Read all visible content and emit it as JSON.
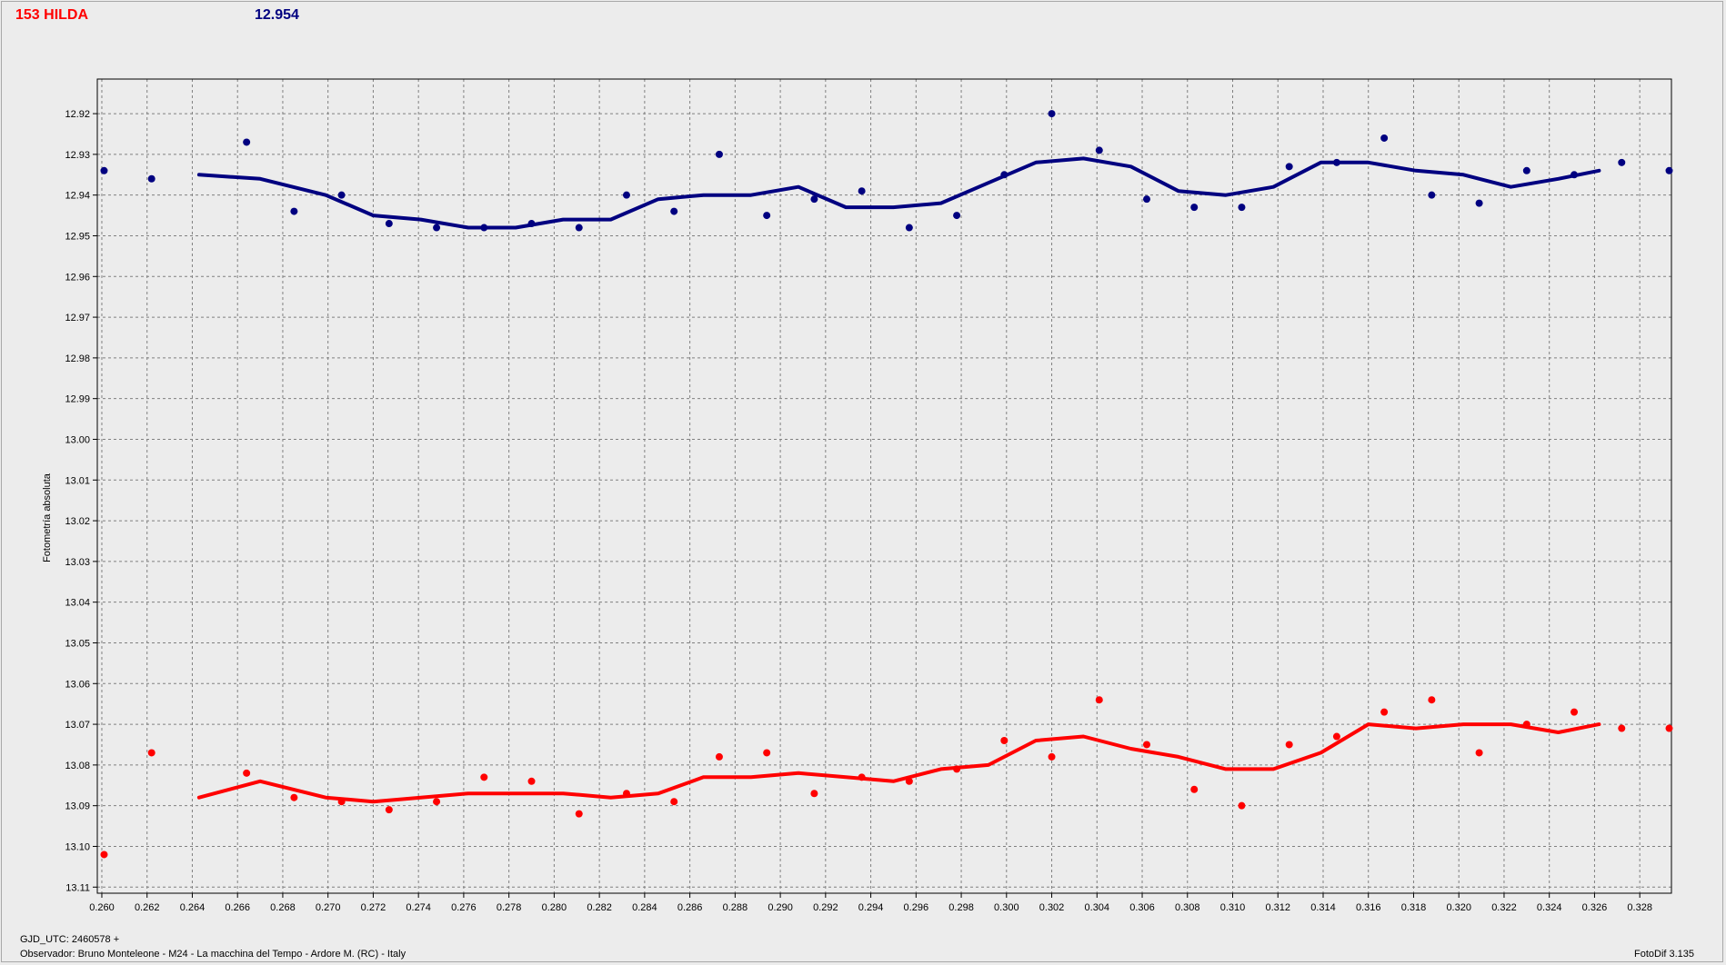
{
  "header": {
    "object_name": "153 HILDA",
    "magnitude": "12.954"
  },
  "footer": {
    "gjd": "GJD_UTC: 2460578 +",
    "observer": "Observador: Bruno Monteleone - M24 - La macchina del Tempo - Ardore M. (RC) - Italy",
    "software": "FotoDif 3.135"
  },
  "colors": {
    "background": "#ececec",
    "plot_background": "#ececec",
    "series_blue": "#000080",
    "series_red": "#ff0000",
    "grid": "#808080",
    "header_name": "#ff0000",
    "header_mag": "#000080"
  },
  "chart_data": {
    "type": "scatter",
    "title": "",
    "xlabel": "",
    "ylabel": "Fotometría absoluta",
    "xlim": [
      0.2598,
      0.3294
    ],
    "ylim": [
      13.1115,
      12.9115
    ],
    "y_inverted": true,
    "grid": true,
    "x_ticks": [
      "0.260",
      "0.262",
      "0.264",
      "0.266",
      "0.268",
      "0.270",
      "0.272",
      "0.274",
      "0.276",
      "0.278",
      "0.280",
      "0.282",
      "0.284",
      "0.286",
      "0.288",
      "0.290",
      "0.292",
      "0.294",
      "0.296",
      "0.298",
      "0.300",
      "0.302",
      "0.304",
      "0.306",
      "0.308",
      "0.310",
      "0.312",
      "0.314",
      "0.316",
      "0.318",
      "0.320",
      "0.322",
      "0.324",
      "0.326",
      "0.328"
    ],
    "y_ticks": [
      "12.92",
      "12.93",
      "12.94",
      "12.95",
      "12.96",
      "12.97",
      "12.98",
      "12.99",
      "13.00",
      "13.01",
      "13.02",
      "13.03",
      "13.04",
      "13.05",
      "13.06",
      "13.07",
      "13.08",
      "13.09",
      "13.10",
      "13.11"
    ],
    "series": [
      {
        "color": "#000080",
        "points": {
          "x": [
            0.2601,
            0.2622,
            0.2664,
            0.2685,
            0.2706,
            0.2727,
            0.2748,
            0.2769,
            0.279,
            0.2811,
            0.2832,
            0.2853,
            0.2873,
            0.2894,
            0.2915,
            0.2936,
            0.2957,
            0.2978,
            0.2999,
            0.302,
            0.3041,
            0.3062,
            0.3083,
            0.3104,
            0.3125,
            0.3146,
            0.3167,
            0.3188,
            0.3209,
            0.323,
            0.3251,
            0.3272,
            0.3293
          ],
          "y": [
            12.934,
            12.936,
            12.927,
            12.944,
            12.94,
            12.947,
            12.948,
            12.948,
            12.947,
            12.948,
            12.94,
            12.944,
            12.93,
            12.945,
            12.941,
            12.939,
            12.948,
            12.945,
            12.935,
            12.92,
            12.929,
            12.941,
            12.943,
            12.943,
            12.933,
            12.932,
            12.926,
            12.94,
            12.942,
            12.934,
            12.935,
            12.932,
            12.934
          ]
        },
        "smooth": {
          "x": [
            0.2643,
            0.267,
            0.2699,
            0.272,
            0.2741,
            0.2762,
            0.2783,
            0.2804,
            0.2825,
            0.2846,
            0.2866,
            0.2887,
            0.2908,
            0.2929,
            0.295,
            0.2971,
            0.2992,
            0.3013,
            0.3034,
            0.3055,
            0.3076,
            0.3097,
            0.3118,
            0.3139,
            0.316,
            0.3181,
            0.3202,
            0.3223,
            0.3244,
            0.3262
          ],
          "y": [
            12.935,
            12.936,
            12.94,
            12.945,
            12.946,
            12.948,
            12.948,
            12.946,
            12.946,
            12.941,
            12.94,
            12.94,
            12.938,
            12.943,
            12.943,
            12.942,
            12.937,
            12.932,
            12.931,
            12.933,
            12.939,
            12.94,
            12.938,
            12.932,
            12.932,
            12.934,
            12.935,
            12.938,
            12.936,
            12.934
          ]
        }
      },
      {
        "color": "#ff0000",
        "points": {
          "x": [
            0.2601,
            0.2622,
            0.2664,
            0.2685,
            0.2706,
            0.2727,
            0.2748,
            0.2769,
            0.279,
            0.2811,
            0.2832,
            0.2853,
            0.2873,
            0.2894,
            0.2915,
            0.2936,
            0.2957,
            0.2978,
            0.2999,
            0.302,
            0.3041,
            0.3062,
            0.3083,
            0.3104,
            0.3125,
            0.3146,
            0.3167,
            0.3188,
            0.3209,
            0.323,
            0.3251,
            0.3272,
            0.3293
          ],
          "y": [
            13.102,
            13.077,
            13.082,
            13.088,
            13.089,
            13.091,
            13.089,
            13.083,
            13.084,
            13.092,
            13.087,
            13.089,
            13.078,
            13.077,
            13.087,
            13.083,
            13.084,
            13.081,
            13.074,
            13.078,
            13.064,
            13.075,
            13.086,
            13.09,
            13.075,
            13.073,
            13.067,
            13.064,
            13.077,
            13.07,
            13.067,
            13.071,
            13.071
          ]
        },
        "smooth": {
          "x": [
            0.2643,
            0.267,
            0.2699,
            0.272,
            0.2741,
            0.2762,
            0.2783,
            0.2804,
            0.2825,
            0.2846,
            0.2866,
            0.2887,
            0.2908,
            0.2929,
            0.295,
            0.2971,
            0.2992,
            0.3013,
            0.3034,
            0.3055,
            0.3076,
            0.3097,
            0.3118,
            0.3139,
            0.316,
            0.3181,
            0.3202,
            0.3223,
            0.3244,
            0.3262
          ],
          "y": [
            13.088,
            13.084,
            13.088,
            13.089,
            13.088,
            13.087,
            13.087,
            13.087,
            13.088,
            13.087,
            13.083,
            13.083,
            13.082,
            13.083,
            13.084,
            13.081,
            13.08,
            13.074,
            13.073,
            13.076,
            13.078,
            13.081,
            13.081,
            13.077,
            13.07,
            13.071,
            13.07,
            13.07,
            13.072,
            13.07
          ]
        }
      }
    ]
  }
}
